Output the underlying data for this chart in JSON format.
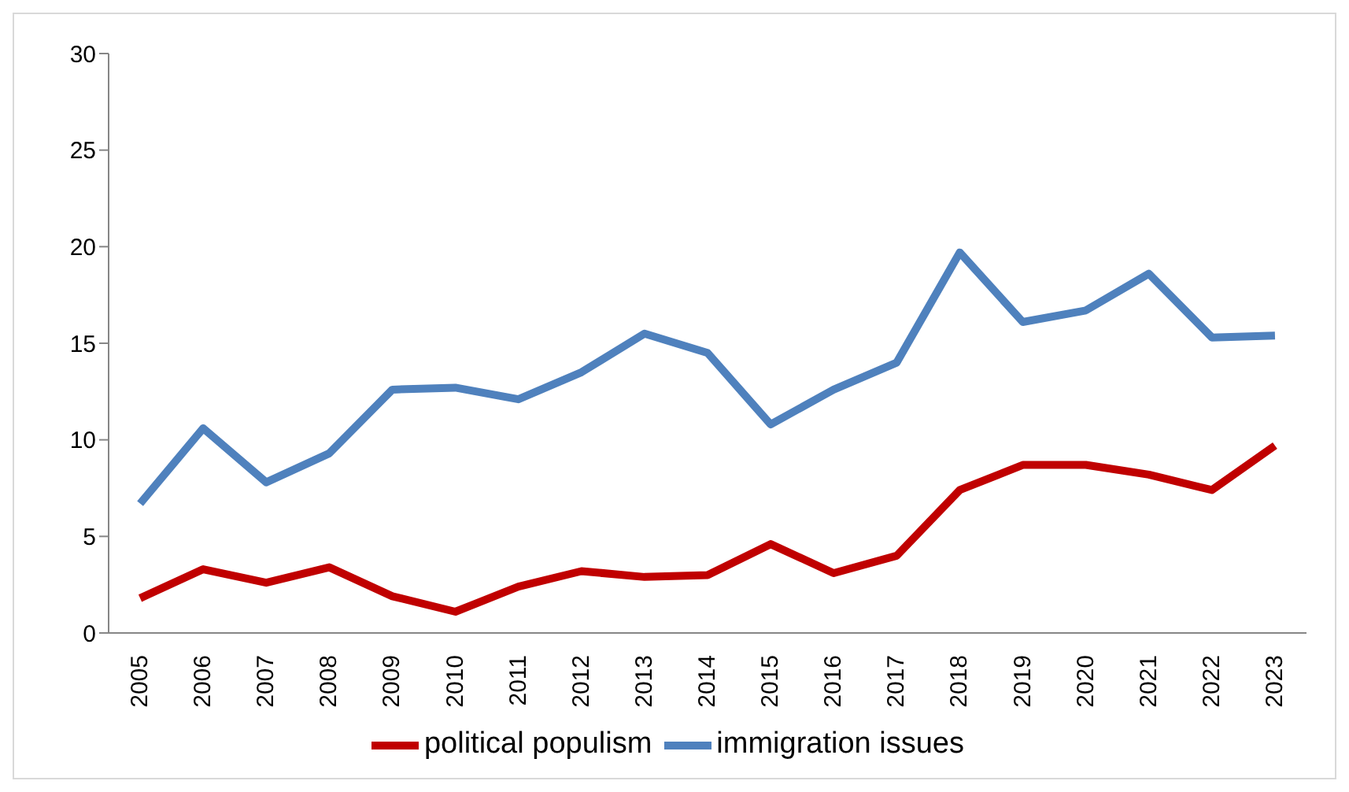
{
  "chart_data": {
    "type": "line",
    "categories": [
      "2005",
      "2006",
      "2007",
      "2008",
      "2009",
      "2010",
      "2011",
      "2012",
      "2013",
      "2014",
      "2015",
      "2016",
      "2017",
      "2018",
      "2019",
      "2020",
      "2021",
      "2022",
      "2023"
    ],
    "series": [
      {
        "name": "political populism",
        "color": "#c00000",
        "values": [
          1.8,
          3.3,
          2.6,
          3.4,
          1.9,
          1.1,
          2.4,
          3.2,
          2.9,
          3.0,
          4.6,
          3.1,
          4.0,
          7.4,
          8.7,
          8.7,
          8.2,
          7.4,
          9.7
        ]
      },
      {
        "name": "immigration issues",
        "color": "#4f81bd",
        "values": [
          6.7,
          10.6,
          7.8,
          9.3,
          12.6,
          12.7,
          12.1,
          13.5,
          15.5,
          14.5,
          10.8,
          12.6,
          14.0,
          19.7,
          16.1,
          16.7,
          18.6,
          15.3,
          15.4
        ]
      }
    ],
    "ylim": [
      0,
      30
    ],
    "yticks": [
      0,
      5,
      10,
      15,
      20,
      25,
      30
    ],
    "grid": false,
    "legend": "bottom",
    "marker": "none",
    "line_style": "solid"
  }
}
